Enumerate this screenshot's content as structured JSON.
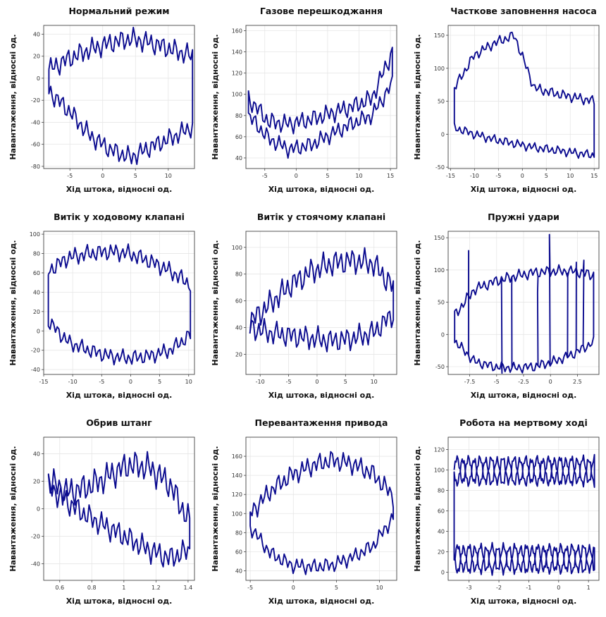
{
  "chart_data": [
    {
      "type": "line",
      "title": "Нормальний режим",
      "xlabel": "Хід штока, відносні од.",
      "ylabel": "Навантаження, відносні од.",
      "xlim": [
        -9,
        14
      ],
      "ylim": [
        -82,
        48
      ],
      "xticks": [
        -5,
        0,
        5,
        10
      ],
      "yticks": [
        -80,
        -60,
        -40,
        -20,
        0,
        20,
        40
      ],
      "series": [
        {
          "shape": "card",
          "x_range": [
            -8.2,
            13.7
          ],
          "top_base": [
            8,
            18,
            26,
            32,
            36,
            32,
            26,
            20
          ],
          "bottom_base": [
            -12,
            -30,
            -52,
            -65,
            -72,
            -62,
            -54,
            -44
          ],
          "top_amp": 11,
          "bottom_amp": 10
        }
      ]
    },
    {
      "type": "line",
      "title": "Газове перешкоджання",
      "xlabel": "Хід штока, відносні од.",
      "ylabel": "Навантаження, відносні од.",
      "xlim": [
        -8,
        16
      ],
      "ylim": [
        30,
        165
      ],
      "xticks": [
        -5,
        0,
        5,
        10,
        15
      ],
      "yticks": [
        40,
        60,
        80,
        100,
        120,
        140,
        160
      ],
      "series": [
        {
          "shape": "card",
          "x_range": [
            -7.6,
            15.3
          ],
          "top_base": [
            96,
            74,
            72,
            76,
            82,
            88,
            96,
            140
          ],
          "bottom_base": [
            80,
            58,
            48,
            52,
            62,
            72,
            80,
            110
          ],
          "top_amp": 10,
          "bottom_amp": 9
        }
      ]
    },
    {
      "type": "line",
      "title": "Часткове заповнення насоса",
      "xlabel": "Хід штока, відносні од.",
      "ylabel": "Навантаження, відносні од.",
      "xlim": [
        -15.5,
        16
      ],
      "ylim": [
        -52,
        165
      ],
      "xticks": [
        -15,
        -10,
        -5,
        0,
        5,
        10,
        15
      ],
      "yticks": [
        -50,
        0,
        50,
        100,
        150
      ],
      "series": [
        {
          "shape": "card",
          "x_range": [
            -14.2,
            15.0
          ],
          "top_base": [
            70,
            120,
            138,
            150,
            70,
            62,
            56,
            50
          ],
          "bottom_base": [
            10,
            0,
            -8,
            -14,
            -20,
            -24,
            -28,
            -32
          ],
          "top_amp": 9,
          "bottom_amp": 8
        }
      ]
    },
    {
      "type": "line",
      "title": "Витік у ходовому клапані",
      "xlabel": "Хід штока, відносні од.",
      "ylabel": "Навантаження, відносні од.",
      "xlim": [
        -15,
        11
      ],
      "ylim": [
        -45,
        103
      ],
      "xticks": [
        -15,
        -10,
        -5,
        0,
        5,
        10
      ],
      "yticks": [
        -40,
        -20,
        0,
        20,
        40,
        60,
        80,
        100
      ],
      "series": [
        {
          "shape": "card",
          "x_range": [
            -14.2,
            10.3
          ],
          "top_base": [
            62,
            76,
            80,
            82,
            80,
            72,
            62,
            48
          ],
          "bottom_base": [
            10,
            -12,
            -20,
            -26,
            -28,
            -26,
            -20,
            -4
          ],
          "top_amp": 10,
          "bottom_amp": 9
        }
      ]
    },
    {
      "type": "line",
      "title": "Витік у стоячому клапані",
      "xlabel": "Хід штока, відносні од.",
      "ylabel": "Навантаження, відносні од.",
      "xlim": [
        -12.5,
        14
      ],
      "ylim": [
        5,
        112
      ],
      "xticks": [
        -10,
        -5,
        0,
        5,
        10
      ],
      "yticks": [
        20,
        40,
        60,
        80,
        100
      ],
      "series": [
        {
          "shape": "card",
          "x_range": [
            -11.8,
            13.4
          ],
          "top_base": [
            44,
            58,
            72,
            82,
            88,
            90,
            88,
            70
          ],
          "bottom_base": [
            40,
            36,
            34,
            32,
            30,
            32,
            36,
            50
          ],
          "top_amp": 11,
          "bottom_amp": 10
        }
      ]
    },
    {
      "type": "line",
      "title": "Пружні удари",
      "xlabel": "Хід штока, відносні од.",
      "ylabel": "Навантаження, відносні од.",
      "xlim": [
        -9.5,
        4.5
      ],
      "ylim": [
        -62,
        160
      ],
      "xticks": [
        -7.5,
        -5.0,
        -2.5,
        0.0,
        2.5
      ],
      "yticks": [
        -50,
        0,
        50,
        100,
        150
      ],
      "series": [
        {
          "shape": "card",
          "x_range": [
            -8.9,
            4.0
          ],
          "top_base": [
            30,
            70,
            82,
            90,
            96,
            98,
            98,
            92
          ],
          "bottom_base": [
            -10,
            -42,
            -50,
            -52,
            -50,
            -42,
            -30,
            -12
          ],
          "top_amp": 10,
          "bottom_amp": 9,
          "spikes": [
            [
              -7.6,
              130
            ],
            [
              -4.5,
              -60
            ],
            [
              -3.6,
              75
            ],
            [
              -1.2,
              65
            ],
            [
              -0.1,
              155
            ],
            [
              1.6,
              95
            ],
            [
              2.4,
              112
            ],
            [
              3.1,
              115
            ]
          ]
        }
      ]
    },
    {
      "type": "line",
      "title": "Обрив штанг",
      "xlabel": "Хід штока, відносні од.",
      "ylabel": "Навантаження, відносні од.",
      "xlim": [
        0.5,
        1.44
      ],
      "ylim": [
        -52,
        52
      ],
      "xticks": [
        0.6,
        0.8,
        1.0,
        1.2,
        1.4
      ],
      "yticks": [
        -40,
        -20,
        0,
        20,
        40
      ],
      "series": [
        {
          "shape": "card",
          "x_range": [
            0.53,
            1.41
          ],
          "top_base": [
            20,
            12,
            16,
            24,
            32,
            30,
            18,
            -10
          ],
          "bottom_base": [
            16,
            4,
            -6,
            -14,
            -22,
            -30,
            -36,
            -30
          ],
          "top_amp": 12,
          "bottom_amp": 10
        }
      ]
    },
    {
      "type": "line",
      "title": "Перевантаження привода",
      "xlabel": "Хід штока, відносні од.",
      "ylabel": "Навантаження, відносні од.",
      "xlim": [
        -5.5,
        12
      ],
      "ylim": [
        30,
        180
      ],
      "xticks": [
        -5,
        0,
        5,
        10
      ],
      "yticks": [
        40,
        60,
        80,
        100,
        120,
        140,
        160
      ],
      "series": [
        {
          "shape": "card",
          "x_range": [
            -5.0,
            11.6
          ],
          "top_base": [
            100,
            124,
            140,
            150,
            156,
            152,
            142,
            118
          ],
          "bottom_base": [
            86,
            58,
            46,
            44,
            46,
            54,
            66,
            96
          ],
          "top_amp": 12,
          "bottom_amp": 9
        }
      ]
    },
    {
      "type": "line",
      "title": "Робота на мертвому ході",
      "xlabel": "Хід штока, відносні од.",
      "ylabel": "Навантаження, відносні од.",
      "xlim": [
        -3.7,
        1.35
      ],
      "ylim": [
        -8,
        132
      ],
      "xticks": [
        -3,
        -2,
        -1,
        0,
        1
      ],
      "yticks": [
        0,
        20,
        40,
        60,
        80,
        100,
        120
      ],
      "series": [
        {
          "shape": "braided",
          "x_range": [
            -3.5,
            1.2
          ],
          "upper_center": 100,
          "lower_center": 12,
          "amp": 12
        }
      ]
    }
  ]
}
